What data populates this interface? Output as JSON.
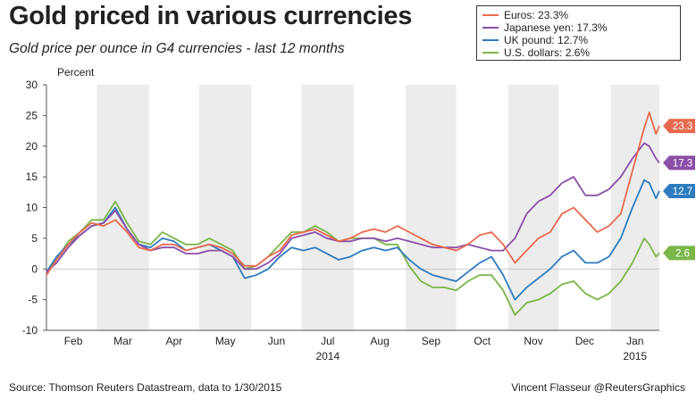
{
  "header": {
    "title": "Gold priced in various currencies",
    "subtitle": "Gold price per ounce in G4 currencies - last 12 months"
  },
  "footer": {
    "source": "Source: Thomson Reuters Datastream, data to 1/30/2015",
    "credit": "Vincent Flasseur @ReutersGraphics"
  },
  "chart_data": {
    "type": "line",
    "title": "Gold priced in various currencies",
    "subtitle": "Gold price per ounce in G4 currencies - last 12 months",
    "ylabel": "Percent",
    "ylim": [
      -10,
      30
    ],
    "yticks": [
      -10,
      -5,
      0,
      5,
      10,
      15,
      20,
      25,
      30
    ],
    "xlim": [
      "2014-01-30",
      "2015-01-30"
    ],
    "month_ticks": [
      "Feb",
      "Mar",
      "Apr",
      "May",
      "Jun",
      "Jul",
      "Aug",
      "Sep",
      "Oct",
      "Nov",
      "Dec",
      "Jan"
    ],
    "year_labels": [
      {
        "label": "2014",
        "month": "Jul"
      },
      {
        "label": "2015",
        "month": "Jan"
      }
    ],
    "legend_position": "top-right",
    "grid": false,
    "shaded_alternate_months": true,
    "series": [
      {
        "name": "Euros: 23.3%",
        "end_label": "23.3",
        "color": "#e8694f",
        "points": [
          [
            "2014-01-30",
            -1
          ],
          [
            "2014-02-05",
            1.5
          ],
          [
            "2014-02-12",
            4
          ],
          [
            "2014-02-19",
            6
          ],
          [
            "2014-02-26",
            7.5
          ],
          [
            "2014-03-05",
            7
          ],
          [
            "2014-03-12",
            8
          ],
          [
            "2014-03-19",
            6
          ],
          [
            "2014-03-26",
            3.5
          ],
          [
            "2014-04-02",
            3
          ],
          [
            "2014-04-09",
            4
          ],
          [
            "2014-04-16",
            4
          ],
          [
            "2014-04-23",
            3
          ],
          [
            "2014-04-30",
            3.5
          ],
          [
            "2014-05-07",
            4
          ],
          [
            "2014-05-14",
            3.5
          ],
          [
            "2014-05-21",
            2.5
          ],
          [
            "2014-05-28",
            0.5
          ],
          [
            "2014-06-04",
            0.5
          ],
          [
            "2014-06-11",
            2
          ],
          [
            "2014-06-18",
            3
          ],
          [
            "2014-06-25",
            5.5
          ],
          [
            "2014-07-02",
            6
          ],
          [
            "2014-07-09",
            6.5
          ],
          [
            "2014-07-16",
            5.5
          ],
          [
            "2014-07-23",
            4.5
          ],
          [
            "2014-07-30",
            5
          ],
          [
            "2014-08-06",
            6
          ],
          [
            "2014-08-13",
            6.5
          ],
          [
            "2014-08-20",
            6
          ],
          [
            "2014-08-27",
            7
          ],
          [
            "2014-09-03",
            6
          ],
          [
            "2014-09-10",
            5
          ],
          [
            "2014-09-17",
            4
          ],
          [
            "2014-09-24",
            3.5
          ],
          [
            "2014-10-01",
            3
          ],
          [
            "2014-10-08",
            4
          ],
          [
            "2014-10-15",
            5.5
          ],
          [
            "2014-10-22",
            6
          ],
          [
            "2014-10-29",
            4
          ],
          [
            "2014-11-05",
            1
          ],
          [
            "2014-11-12",
            3
          ],
          [
            "2014-11-19",
            5
          ],
          [
            "2014-11-26",
            6
          ],
          [
            "2014-12-03",
            9
          ],
          [
            "2014-12-10",
            10
          ],
          [
            "2014-12-17",
            8
          ],
          [
            "2014-12-24",
            6
          ],
          [
            "2014-12-31",
            7
          ],
          [
            "2015-01-07",
            9
          ],
          [
            "2015-01-14",
            16
          ],
          [
            "2015-01-21",
            23
          ],
          [
            "2015-01-24",
            25.5
          ],
          [
            "2015-01-28",
            22
          ],
          [
            "2015-01-30",
            23.3
          ]
        ]
      },
      {
        "name": "Japanese yen: 17.3%",
        "end_label": "17.3",
        "color": "#8b4fa8",
        "points": [
          [
            "2014-01-30",
            -0.5
          ],
          [
            "2014-02-05",
            1
          ],
          [
            "2014-02-12",
            3.5
          ],
          [
            "2014-02-19",
            5.5
          ],
          [
            "2014-02-26",
            7
          ],
          [
            "2014-03-05",
            7.5
          ],
          [
            "2014-03-12",
            9.5
          ],
          [
            "2014-03-19",
            6.5
          ],
          [
            "2014-03-26",
            4
          ],
          [
            "2014-04-02",
            3
          ],
          [
            "2014-04-09",
            3.5
          ],
          [
            "2014-04-16",
            3.5
          ],
          [
            "2014-04-23",
            2.5
          ],
          [
            "2014-04-30",
            2.5
          ],
          [
            "2014-05-07",
            3
          ],
          [
            "2014-05-14",
            3
          ],
          [
            "2014-05-21",
            2
          ],
          [
            "2014-05-28",
            0
          ],
          [
            "2014-06-04",
            0
          ],
          [
            "2014-06-11",
            1
          ],
          [
            "2014-06-18",
            2.5
          ],
          [
            "2014-06-25",
            5
          ],
          [
            "2014-07-02",
            5.5
          ],
          [
            "2014-07-09",
            6
          ],
          [
            "2014-07-16",
            5
          ],
          [
            "2014-07-23",
            4.5
          ],
          [
            "2014-07-30",
            4.5
          ],
          [
            "2014-08-06",
            5
          ],
          [
            "2014-08-13",
            5
          ],
          [
            "2014-08-20",
            4.5
          ],
          [
            "2014-08-27",
            5
          ],
          [
            "2014-09-03",
            4.5
          ],
          [
            "2014-09-10",
            4
          ],
          [
            "2014-09-17",
            3.5
          ],
          [
            "2014-09-24",
            3.5
          ],
          [
            "2014-10-01",
            3.5
          ],
          [
            "2014-10-08",
            4
          ],
          [
            "2014-10-15",
            3.5
          ],
          [
            "2014-10-22",
            3
          ],
          [
            "2014-10-29",
            3
          ],
          [
            "2014-11-05",
            5
          ],
          [
            "2014-11-12",
            9
          ],
          [
            "2014-11-19",
            11
          ],
          [
            "2014-11-26",
            12
          ],
          [
            "2014-12-03",
            14
          ],
          [
            "2014-12-10",
            15
          ],
          [
            "2014-12-17",
            12
          ],
          [
            "2014-12-24",
            12
          ],
          [
            "2014-12-31",
            13
          ],
          [
            "2015-01-07",
            15
          ],
          [
            "2015-01-14",
            18
          ],
          [
            "2015-01-21",
            20.5
          ],
          [
            "2015-01-24",
            20
          ],
          [
            "2015-01-28",
            18
          ],
          [
            "2015-01-30",
            17.3
          ]
        ]
      },
      {
        "name": "UK pound: 12.7%",
        "end_label": "12.7",
        "color": "#2e7bbf",
        "points": [
          [
            "2014-01-30",
            -0.5
          ],
          [
            "2014-02-05",
            2
          ],
          [
            "2014-02-12",
            4
          ],
          [
            "2014-02-19",
            5.5
          ],
          [
            "2014-02-26",
            7
          ],
          [
            "2014-03-05",
            7.5
          ],
          [
            "2014-03-12",
            10
          ],
          [
            "2014-03-19",
            6.5
          ],
          [
            "2014-03-26",
            4
          ],
          [
            "2014-04-02",
            3.5
          ],
          [
            "2014-04-09",
            5
          ],
          [
            "2014-04-16",
            4.5
          ],
          [
            "2014-04-23",
            3
          ],
          [
            "2014-04-30",
            3.5
          ],
          [
            "2014-05-07",
            4
          ],
          [
            "2014-05-14",
            3
          ],
          [
            "2014-05-21",
            2
          ],
          [
            "2014-05-28",
            -1.5
          ],
          [
            "2014-06-04",
            -1
          ],
          [
            "2014-06-11",
            0
          ],
          [
            "2014-06-18",
            2
          ],
          [
            "2014-06-25",
            3.5
          ],
          [
            "2014-07-02",
            3
          ],
          [
            "2014-07-09",
            3.5
          ],
          [
            "2014-07-16",
            2.5
          ],
          [
            "2014-07-23",
            1.5
          ],
          [
            "2014-07-30",
            2
          ],
          [
            "2014-08-06",
            3
          ],
          [
            "2014-08-13",
            3.5
          ],
          [
            "2014-08-20",
            3
          ],
          [
            "2014-08-27",
            3.5
          ],
          [
            "2014-09-03",
            1.5
          ],
          [
            "2014-09-10",
            0
          ],
          [
            "2014-09-17",
            -1
          ],
          [
            "2014-09-24",
            -1.5
          ],
          [
            "2014-10-01",
            -2
          ],
          [
            "2014-10-08",
            -0.5
          ],
          [
            "2014-10-15",
            1
          ],
          [
            "2014-10-22",
            2
          ],
          [
            "2014-10-29",
            -1
          ],
          [
            "2014-11-05",
            -5
          ],
          [
            "2014-11-12",
            -3
          ],
          [
            "2014-11-19",
            -1.5
          ],
          [
            "2014-11-26",
            0
          ],
          [
            "2014-12-03",
            2
          ],
          [
            "2014-12-10",
            3
          ],
          [
            "2014-12-17",
            1
          ],
          [
            "2014-12-24",
            1
          ],
          [
            "2014-12-31",
            2
          ],
          [
            "2015-01-07",
            5
          ],
          [
            "2015-01-14",
            10
          ],
          [
            "2015-01-21",
            14.5
          ],
          [
            "2015-01-24",
            14
          ],
          [
            "2015-01-28",
            11.5
          ],
          [
            "2015-01-30",
            12.7
          ]
        ]
      },
      {
        "name": "U.S. dollars: 2.6%",
        "end_label": "2.6",
        "color": "#7ab648",
        "points": [
          [
            "2014-01-30",
            -0.5
          ],
          [
            "2014-02-05",
            1.5
          ],
          [
            "2014-02-12",
            4.5
          ],
          [
            "2014-02-19",
            6
          ],
          [
            "2014-02-26",
            8
          ],
          [
            "2014-03-05",
            8
          ],
          [
            "2014-03-12",
            11
          ],
          [
            "2014-03-19",
            7.5
          ],
          [
            "2014-03-26",
            4.5
          ],
          [
            "2014-04-02",
            4
          ],
          [
            "2014-04-09",
            6
          ],
          [
            "2014-04-16",
            5
          ],
          [
            "2014-04-23",
            4
          ],
          [
            "2014-04-30",
            4
          ],
          [
            "2014-05-07",
            5
          ],
          [
            "2014-05-14",
            4
          ],
          [
            "2014-05-21",
            3
          ],
          [
            "2014-05-28",
            0
          ],
          [
            "2014-06-04",
            0.5
          ],
          [
            "2014-06-11",
            2
          ],
          [
            "2014-06-18",
            4
          ],
          [
            "2014-06-25",
            6
          ],
          [
            "2014-07-02",
            6
          ],
          [
            "2014-07-09",
            7
          ],
          [
            "2014-07-16",
            6
          ],
          [
            "2014-07-23",
            4.5
          ],
          [
            "2014-07-30",
            5
          ],
          [
            "2014-08-06",
            5
          ],
          [
            "2014-08-13",
            5
          ],
          [
            "2014-08-20",
            4
          ],
          [
            "2014-08-27",
            4
          ],
          [
            "2014-09-03",
            0.5
          ],
          [
            "2014-09-10",
            -2
          ],
          [
            "2014-09-17",
            -3
          ],
          [
            "2014-09-24",
            -3
          ],
          [
            "2014-10-01",
            -3.5
          ],
          [
            "2014-10-08",
            -2
          ],
          [
            "2014-10-15",
            -1
          ],
          [
            "2014-10-22",
            -1
          ],
          [
            "2014-10-29",
            -3.5
          ],
          [
            "2014-11-05",
            -7.5
          ],
          [
            "2014-11-12",
            -5.5
          ],
          [
            "2014-11-19",
            -5
          ],
          [
            "2014-11-26",
            -4
          ],
          [
            "2014-12-03",
            -2.5
          ],
          [
            "2014-12-10",
            -2
          ],
          [
            "2014-12-17",
            -4
          ],
          [
            "2014-12-24",
            -5
          ],
          [
            "2014-12-31",
            -4
          ],
          [
            "2015-01-07",
            -2
          ],
          [
            "2015-01-14",
            1
          ],
          [
            "2015-01-21",
            5
          ],
          [
            "2015-01-24",
            4
          ],
          [
            "2015-01-28",
            2
          ],
          [
            "2015-01-30",
            2.6
          ]
        ]
      }
    ]
  }
}
